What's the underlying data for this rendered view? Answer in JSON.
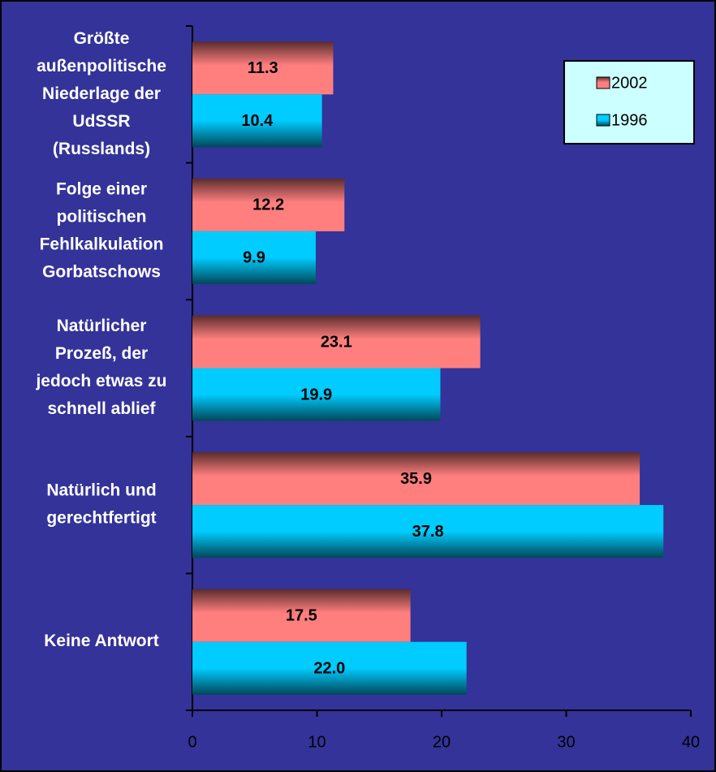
{
  "chart_data": {
    "type": "bar",
    "orientation": "horizontal",
    "categories": [
      [
        "Größte",
        "außenpolitische",
        "Niederlage der",
        "UdSSR",
        "(Russlands)"
      ],
      [
        "Folge einer",
        "politischen",
        "Fehlkalkulation",
        "Gorbatschows"
      ],
      [
        "Natürlicher",
        "Prozeß, der",
        "jedoch etwas zu",
        "schnell ablief"
      ],
      [
        "Natürlich und",
        "gerechtfertigt"
      ],
      [
        "Keine Antwort"
      ]
    ],
    "series": [
      {
        "name": "2002",
        "color": "#ff7f7f",
        "values": [
          11.3,
          12.2,
          23.1,
          35.9,
          17.5
        ],
        "value_labels": [
          "11.3",
          "12.2",
          "23.1",
          "35.9",
          "17.5"
        ]
      },
      {
        "name": "1996",
        "color": "#00ccff",
        "values": [
          10.4,
          9.9,
          19.9,
          37.8,
          22
        ],
        "value_labels": [
          "10.4",
          "9.9",
          "19.9",
          "37.8",
          "22.0"
        ]
      }
    ],
    "xlim": [
      0,
      40
    ],
    "xticks": [
      0,
      10,
      20,
      30,
      40
    ],
    "legend": "top-right"
  }
}
